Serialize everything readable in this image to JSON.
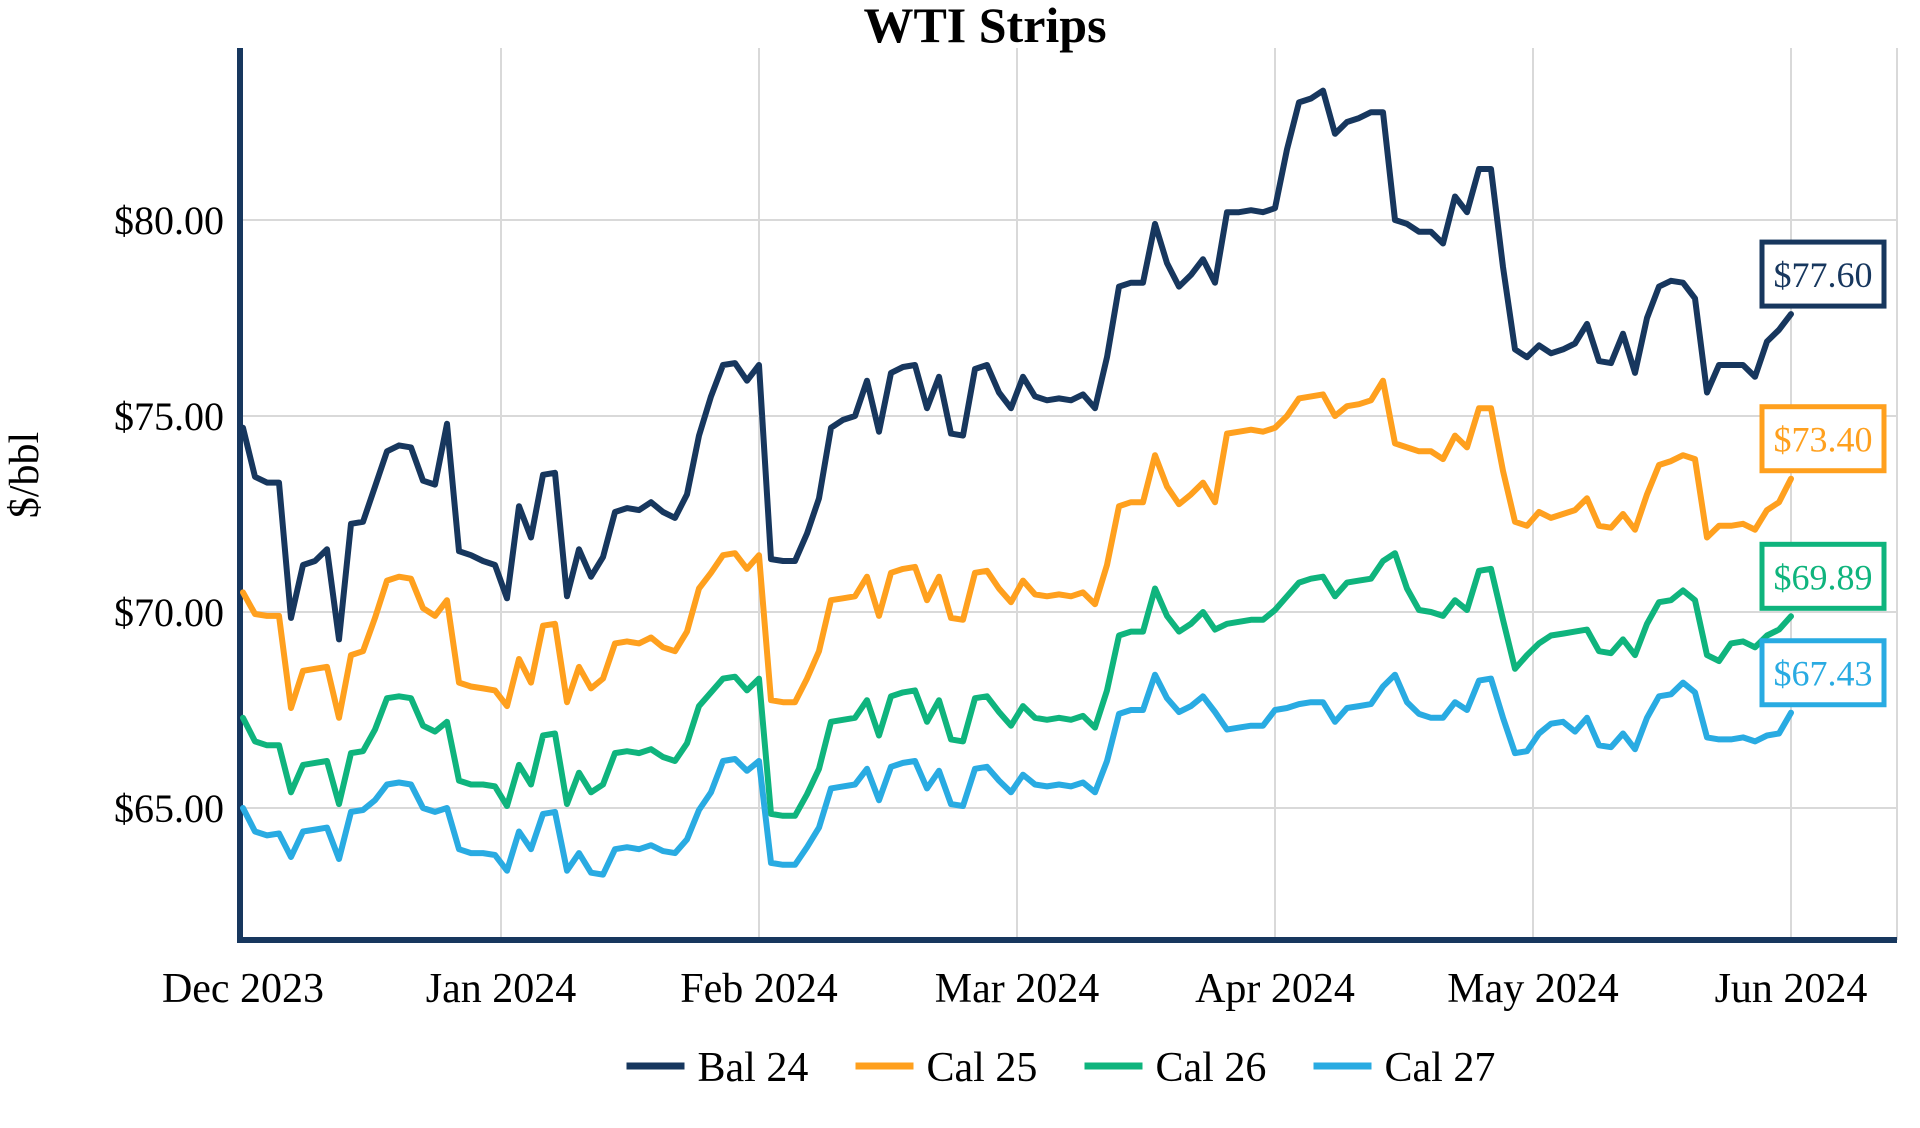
{
  "title": "WTI Strips",
  "y_axis": {
    "label": "$/bbl",
    "ticks": [
      {
        "label": "$80.00",
        "value": 80
      },
      {
        "label": "$75.00",
        "value": 75
      },
      {
        "label": "$70.00",
        "value": 70
      },
      {
        "label": "$65.00",
        "value": 65
      }
    ]
  },
  "x_axis": {
    "ticks": [
      "Dec 2023",
      "Jan 2024",
      "Feb 2024",
      "Mar 2024",
      "Apr 2024",
      "May 2024",
      "Jun 2024"
    ]
  },
  "legend": {
    "position": "bottom-center",
    "items": [
      {
        "label": "Bal 24",
        "color": "#17375E"
      },
      {
        "label": "Cal 25",
        "color": "#FFA01E"
      },
      {
        "label": "Cal 26",
        "color": "#0FB47D"
      },
      {
        "label": "Cal 27",
        "color": "#29ABE2"
      }
    ]
  },
  "end_labels": [
    {
      "text": "$77.60",
      "value": 77.6,
      "color": "#17375E"
    },
    {
      "text": "$73.40",
      "value": 73.4,
      "color": "#FFA01E"
    },
    {
      "text": "$69.89",
      "value": 69.89,
      "color": "#0FB47D"
    },
    {
      "text": "$67.43",
      "value": 67.43,
      "color": "#29ABE2"
    }
  ],
  "colors": {
    "axis": "#17375E",
    "grid": "#D9D9D9",
    "background": "#FFFFFF",
    "text": "#000000"
  },
  "chart_data": {
    "type": "line",
    "title": "WTI Strips",
    "xlabel": "",
    "ylabel": "$/bbl",
    "x_unit": "business days, Dec 2023 through early Jun 2024",
    "x_tick_labels": [
      "Dec 2023",
      "Jan 2024",
      "Feb 2024",
      "Mar 2024",
      "Apr 2024",
      "May 2024",
      "Jun 2024"
    ],
    "y_tick_values": [
      65,
      70,
      75,
      80
    ],
    "ylim": [
      61.6,
      84.4
    ],
    "grid": true,
    "legend_position": "bottom",
    "series": [
      {
        "name": "Bal 24",
        "color": "#17375E",
        "end_label": "$77.60",
        "last_value": 77.6,
        "values": [
          74.7,
          73.45,
          73.3,
          73.3,
          69.85,
          71.2,
          71.3,
          71.6,
          69.3,
          72.25,
          72.3,
          73.2,
          74.1,
          74.25,
          74.2,
          73.35,
          73.25,
          74.8,
          71.55,
          71.45,
          71.3,
          71.2,
          70.35,
          72.7,
          71.9,
          73.5,
          73.55,
          70.4,
          71.6,
          70.9,
          71.4,
          72.55,
          72.65,
          72.6,
          72.8,
          72.55,
          72.4,
          73.0,
          74.5,
          75.5,
          76.3,
          76.35,
          75.9,
          76.3,
          71.35,
          71.3,
          71.3,
          72.0,
          72.9,
          74.7,
          74.9,
          75.0,
          75.9,
          74.6,
          76.1,
          76.25,
          76.3,
          75.2,
          76.0,
          74.55,
          74.5,
          76.2,
          76.3,
          75.6,
          75.2,
          76.0,
          75.5,
          75.4,
          75.45,
          75.4,
          75.55,
          75.2,
          76.5,
          78.3,
          78.4,
          78.4,
          79.9,
          78.9,
          78.3,
          78.6,
          79.0,
          78.4,
          80.2,
          80.2,
          80.25,
          80.2,
          80.3,
          81.8,
          83.0,
          83.1,
          83.3,
          82.2,
          82.5,
          82.6,
          82.75,
          82.75,
          80.0,
          79.9,
          79.7,
          79.7,
          79.4,
          80.6,
          80.2,
          81.3,
          81.3,
          78.8,
          76.7,
          76.5,
          76.8,
          76.6,
          76.7,
          76.85,
          77.35,
          76.4,
          76.35,
          77.1,
          76.1,
          77.5,
          78.3,
          78.45,
          78.4,
          78.0,
          75.6,
          76.3,
          76.3,
          76.3,
          76.0,
          76.9,
          77.2,
          77.6
        ]
      },
      {
        "name": "Cal 25",
        "color": "#FFA01E",
        "end_label": "$73.40",
        "last_value": 73.4,
        "values": [
          70.5,
          69.95,
          69.9,
          69.9,
          67.55,
          68.5,
          68.55,
          68.6,
          67.3,
          68.9,
          69.0,
          69.85,
          70.8,
          70.9,
          70.85,
          70.1,
          69.9,
          70.3,
          68.2,
          68.1,
          68.05,
          68.0,
          67.6,
          68.8,
          68.2,
          69.65,
          69.7,
          67.7,
          68.6,
          68.05,
          68.3,
          69.2,
          69.25,
          69.2,
          69.35,
          69.1,
          69.0,
          69.5,
          70.6,
          71.0,
          71.45,
          71.5,
          71.1,
          71.45,
          67.75,
          67.7,
          67.7,
          68.3,
          69.0,
          70.3,
          70.35,
          70.4,
          70.9,
          69.9,
          71.0,
          71.1,
          71.15,
          70.3,
          70.9,
          69.85,
          69.8,
          71.0,
          71.05,
          70.6,
          70.25,
          70.8,
          70.45,
          70.4,
          70.45,
          70.4,
          70.5,
          70.2,
          71.2,
          72.7,
          72.8,
          72.8,
          74.0,
          73.2,
          72.75,
          73.0,
          73.3,
          72.8,
          74.55,
          74.6,
          74.65,
          74.6,
          74.7,
          75.0,
          75.45,
          75.5,
          75.55,
          75.0,
          75.25,
          75.3,
          75.4,
          75.9,
          74.3,
          74.2,
          74.1,
          74.1,
          73.9,
          74.5,
          74.2,
          75.2,
          75.2,
          73.6,
          72.3,
          72.2,
          72.55,
          72.4,
          72.5,
          72.6,
          72.9,
          72.2,
          72.15,
          72.5,
          72.1,
          73.0,
          73.75,
          73.85,
          74.0,
          73.9,
          71.9,
          72.2,
          72.2,
          72.25,
          72.1,
          72.6,
          72.8,
          73.4
        ]
      },
      {
        "name": "Cal 26",
        "color": "#0FB47D",
        "end_label": "$69.89",
        "last_value": 69.89,
        "values": [
          67.3,
          66.7,
          66.6,
          66.6,
          65.4,
          66.1,
          66.15,
          66.2,
          65.1,
          66.4,
          66.45,
          67.0,
          67.8,
          67.85,
          67.8,
          67.1,
          66.95,
          67.2,
          65.7,
          65.6,
          65.6,
          65.55,
          65.05,
          66.1,
          65.6,
          66.85,
          66.9,
          65.1,
          65.9,
          65.4,
          65.6,
          66.4,
          66.45,
          66.4,
          66.5,
          66.3,
          66.2,
          66.65,
          67.6,
          67.95,
          68.3,
          68.35,
          68.0,
          68.3,
          64.85,
          64.8,
          64.8,
          65.35,
          66.0,
          67.2,
          67.25,
          67.3,
          67.75,
          66.85,
          67.85,
          67.95,
          68.0,
          67.2,
          67.75,
          66.75,
          66.7,
          67.8,
          67.85,
          67.45,
          67.1,
          67.6,
          67.3,
          67.25,
          67.3,
          67.25,
          67.35,
          67.05,
          68.0,
          69.4,
          69.5,
          69.5,
          70.6,
          69.9,
          69.5,
          69.7,
          70.0,
          69.55,
          69.7,
          69.75,
          69.8,
          69.8,
          70.05,
          70.4,
          70.75,
          70.85,
          70.9,
          70.4,
          70.75,
          70.8,
          70.85,
          71.3,
          71.5,
          70.6,
          70.05,
          70.0,
          69.9,
          70.3,
          70.05,
          71.05,
          71.1,
          69.8,
          68.55,
          68.9,
          69.2,
          69.4,
          69.45,
          69.5,
          69.55,
          69.0,
          68.95,
          69.3,
          68.9,
          69.7,
          70.25,
          70.3,
          70.55,
          70.3,
          68.9,
          68.75,
          69.2,
          69.25,
          69.1,
          69.4,
          69.55,
          69.89
        ]
      },
      {
        "name": "Cal 27",
        "color": "#29ABE2",
        "end_label": "$67.43",
        "last_value": 67.43,
        "values": [
          65.0,
          64.4,
          64.3,
          64.35,
          63.75,
          64.4,
          64.45,
          64.5,
          63.7,
          64.9,
          64.95,
          65.2,
          65.6,
          65.65,
          65.6,
          65.0,
          64.9,
          65.0,
          63.95,
          63.85,
          63.85,
          63.8,
          63.4,
          64.4,
          63.95,
          64.85,
          64.9,
          63.4,
          63.85,
          63.35,
          63.3,
          63.95,
          64.0,
          63.95,
          64.05,
          63.9,
          63.85,
          64.2,
          64.95,
          65.4,
          66.2,
          66.25,
          65.95,
          66.2,
          63.6,
          63.55,
          63.55,
          64.0,
          64.5,
          65.5,
          65.55,
          65.6,
          66.0,
          65.2,
          66.05,
          66.15,
          66.2,
          65.5,
          65.95,
          65.1,
          65.05,
          66.0,
          66.05,
          65.7,
          65.4,
          65.85,
          65.6,
          65.55,
          65.6,
          65.55,
          65.65,
          65.4,
          66.2,
          67.4,
          67.5,
          67.5,
          68.4,
          67.8,
          67.45,
          67.6,
          67.85,
          67.45,
          67.0,
          67.05,
          67.1,
          67.1,
          67.5,
          67.55,
          67.65,
          67.7,
          67.7,
          67.2,
          67.55,
          67.6,
          67.65,
          68.1,
          68.4,
          67.7,
          67.4,
          67.3,
          67.3,
          67.7,
          67.5,
          68.25,
          68.3,
          67.3,
          66.4,
          66.45,
          66.9,
          67.15,
          67.2,
          66.95,
          67.3,
          66.6,
          66.55,
          66.9,
          66.5,
          67.3,
          67.85,
          67.9,
          68.2,
          67.95,
          66.8,
          66.75,
          66.75,
          66.8,
          66.7,
          66.85,
          66.9,
          67.43
        ]
      }
    ]
  }
}
